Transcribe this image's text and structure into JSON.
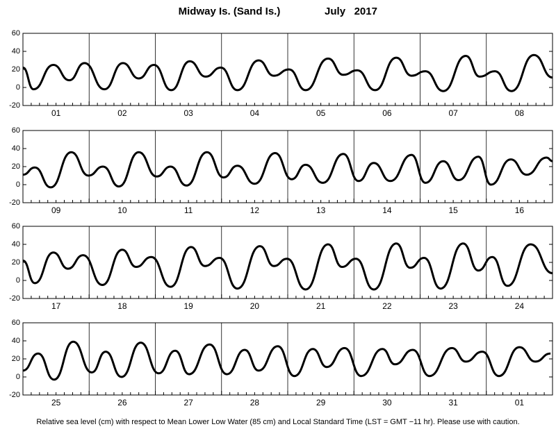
{
  "title": "Midway Is. (Sand Is.)",
  "month": "July   2017",
  "note": "Relative sea level (cm) with respect to Mean Lower Low Water (85 cm) and Local Standard Time (LST = GMT −11 hr). Please use with caution.",
  "chart_data": [
    {
      "type": "line",
      "categories": [
        "01",
        "02",
        "03",
        "04",
        "05",
        "06",
        "07",
        "08"
      ],
      "x": [
        0,
        0.16,
        0.46,
        0.7,
        0.93,
        1.23,
        1.51,
        1.75,
        1.98,
        2.24,
        2.52,
        2.76,
        2.99,
        3.24,
        3.56,
        3.79,
        4.02,
        4.27,
        4.61,
        4.84,
        5.05,
        5.32,
        5.64,
        5.87,
        6.08,
        6.35,
        6.69,
        6.9,
        7.13,
        7.38,
        7.72,
        8
      ],
      "values": [
        22,
        -2,
        25,
        8,
        27,
        -2,
        27,
        10,
        25,
        -3,
        29,
        12,
        22,
        -3,
        30,
        13,
        20,
        -3,
        32,
        14,
        19,
        -3,
        33,
        13,
        18,
        -4,
        35,
        12,
        18,
        -4,
        36,
        11
      ],
      "color": "#000000",
      "xlim": [
        0,
        8
      ],
      "ylim": [
        -20,
        60
      ],
      "yticks": [
        -20,
        0,
        20,
        40,
        60
      ]
    },
    {
      "type": "line",
      "categories": [
        "09",
        "10",
        "11",
        "12",
        "13",
        "14",
        "15",
        "16"
      ],
      "x": [
        0,
        0.18,
        0.42,
        0.73,
        0.99,
        1.21,
        1.45,
        1.75,
        2.02,
        2.23,
        2.47,
        2.78,
        3.03,
        3.24,
        3.5,
        3.81,
        4.06,
        4.27,
        4.53,
        4.84,
        5.07,
        5.3,
        5.55,
        5.87,
        6.08,
        6.35,
        6.58,
        6.88,
        7.07,
        7.37,
        7.61,
        7.91,
        8
      ],
      "values": [
        11,
        19,
        -3,
        36,
        10,
        20,
        -2,
        36,
        9,
        20,
        -1,
        36,
        8,
        21,
        1,
        35,
        6,
        22,
        2,
        34,
        4,
        24,
        4,
        33,
        2,
        26,
        5,
        31,
        0,
        28,
        11,
        30,
        26
      ],
      "color": "#000000",
      "xlim": [
        0,
        8
      ],
      "ylim": [
        -20,
        60
      ],
      "yticks": [
        -20,
        0,
        20,
        40,
        60
      ]
    },
    {
      "type": "line",
      "categories": [
        "17",
        "18",
        "19",
        "20",
        "21",
        "22",
        "23",
        "24"
      ],
      "x": [
        0,
        0.18,
        0.46,
        0.68,
        0.91,
        1.2,
        1.5,
        1.71,
        1.94,
        2.23,
        2.54,
        2.75,
        2.97,
        3.24,
        3.58,
        3.79,
        3.99,
        4.27,
        4.61,
        4.82,
        5.03,
        5.3,
        5.64,
        5.85,
        6.06,
        6.31,
        6.65,
        6.88,
        7.09,
        7.32,
        7.67,
        8
      ],
      "values": [
        22,
        -3,
        31,
        13,
        28,
        -5,
        34,
        15,
        26,
        -7,
        37,
        16,
        25,
        -9,
        38,
        16,
        24,
        -10,
        40,
        15,
        24,
        -10,
        41,
        14,
        25,
        -9,
        41,
        11,
        26,
        -6,
        40,
        8
      ],
      "color": "#000000",
      "xlim": [
        0,
        8
      ],
      "ylim": [
        -20,
        60
      ],
      "yticks": [
        -20,
        0,
        20,
        40,
        60
      ]
    },
    {
      "type": "line",
      "categories": [
        "25",
        "26",
        "27",
        "28",
        "29",
        "30",
        "31",
        "01"
      ],
      "x": [
        0,
        0.23,
        0.47,
        0.76,
        1.04,
        1.25,
        1.49,
        1.78,
        2.05,
        2.3,
        2.51,
        2.82,
        3.08,
        3.35,
        3.56,
        3.85,
        4.1,
        4.38,
        4.59,
        4.86,
        5.11,
        5.43,
        5.62,
        5.89,
        6.14,
        6.48,
        6.69,
        6.94,
        7.19,
        7.5,
        7.74,
        7.97
      ],
      "values": [
        7,
        26,
        -3,
        39,
        5,
        28,
        0,
        38,
        4,
        29,
        3,
        36,
        3,
        30,
        7,
        34,
        1,
        31,
        11,
        32,
        1,
        31,
        14,
        30,
        1,
        32,
        17,
        28,
        1,
        33,
        17,
        26
      ],
      "color": "#000000",
      "xlim": [
        0,
        8
      ],
      "ylim": [
        -20,
        60
      ],
      "yticks": [
        -20,
        0,
        20,
        40,
        60
      ]
    }
  ]
}
